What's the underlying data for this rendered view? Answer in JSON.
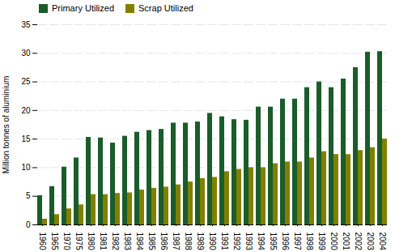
{
  "chart_data": {
    "type": "bar",
    "categories": [
      "1960",
      "1965",
      "1970",
      "1975",
      "1980",
      "1981",
      "1982",
      "1983",
      "1984",
      "1985",
      "1986",
      "1987",
      "1988",
      "1989",
      "1990",
      "1991",
      "1992",
      "1993",
      "1994",
      "1995",
      "1996",
      "1997",
      "1998",
      "1999",
      "2000",
      "2001",
      "2002",
      "2003",
      "2004"
    ],
    "series": [
      {
        "name": "Primary Utilized",
        "color": "#1a5c2a",
        "values": [
          5.1,
          6.7,
          10.1,
          11.7,
          15.3,
          15.2,
          14.3,
          15.5,
          16.2,
          16.5,
          16.7,
          17.8,
          17.8,
          18.0,
          19.5,
          18.9,
          18.4,
          18.3,
          20.6,
          20.6,
          22.0,
          22.0,
          24.0,
          25.0,
          24.0,
          25.5,
          27.5,
          30.2,
          30.3
        ]
      },
      {
        "name": "Scrap Utilized",
        "color": "#808000",
        "values": [
          1.0,
          1.8,
          2.8,
          3.5,
          5.3,
          5.3,
          5.5,
          5.6,
          6.1,
          6.4,
          6.6,
          7.0,
          7.5,
          8.1,
          8.3,
          9.3,
          9.7,
          10.0,
          10.0,
          10.7,
          11.0,
          11.0,
          11.7,
          12.8,
          12.3,
          12.3,
          13.0,
          13.5,
          15.0
        ]
      }
    ],
    "ylabel": "Million tonnes of aluminium",
    "ylim": [
      0,
      35
    ],
    "yticks": [
      0,
      5,
      10,
      15,
      20,
      25,
      30,
      35
    ],
    "grid": true,
    "legend": "upper left"
  }
}
